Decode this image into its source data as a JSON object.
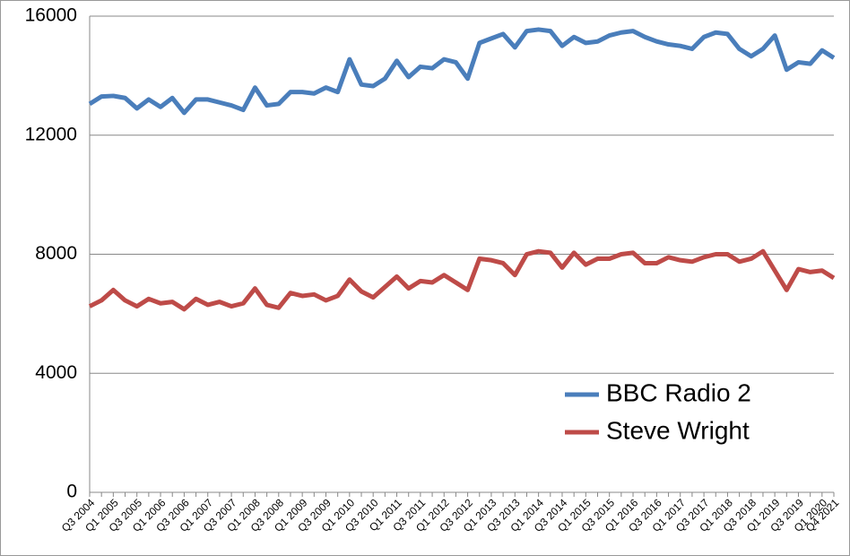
{
  "chart_data": {
    "type": "line",
    "categories": [
      "Q3 2004",
      null,
      "Q1 2005",
      null,
      "Q3 2005",
      null,
      "Q1 2006",
      null,
      "Q3 2006",
      null,
      "Q1 2007",
      null,
      "Q3 2007",
      null,
      "Q1 2008",
      null,
      "Q3 2008",
      null,
      "Q1 2009",
      null,
      "Q3 2009",
      null,
      "Q1 2010",
      null,
      "Q3 2010",
      null,
      "Q1 2011",
      null,
      "Q3 2011",
      null,
      "Q1 2012",
      null,
      "Q3 2012",
      null,
      "Q1 2013",
      null,
      "Q3 2013",
      null,
      "Q1 2014",
      null,
      "Q3 2014",
      null,
      "Q1 2015",
      null,
      "Q3 2015",
      null,
      "Q1 2016",
      null,
      "Q3 2016",
      null,
      "Q1 2017",
      null,
      "Q3 2017",
      null,
      "Q1 2018",
      null,
      "Q3 2018",
      null,
      "Q1 2019",
      null,
      "Q3 2019",
      null,
      "Q1 2020",
      "Q4 2021"
    ],
    "series": [
      {
        "name": "BBC Radio 2",
        "color": "#4a7ebb",
        "values": [
          13050,
          13300,
          13320,
          13250,
          12900,
          13200,
          12950,
          13250,
          12750,
          13200,
          13200,
          13100,
          13000,
          12850,
          13600,
          13000,
          13050,
          13450,
          13450,
          13400,
          13600,
          13450,
          14550,
          13700,
          13650,
          13900,
          14500,
          13950,
          14300,
          14250,
          14550,
          14450,
          13900,
          15100,
          15250,
          15400,
          14950,
          15500,
          15550,
          15500,
          15000,
          15300,
          15100,
          15150,
          15350,
          15450,
          15500,
          15300,
          15150,
          15050,
          15000,
          14900,
          15300,
          15450,
          15400,
          14900,
          14650,
          14900,
          15350,
          14200,
          14450,
          14400,
          14850,
          14600
        ]
      },
      {
        "name": "Steve Wright",
        "color": "#be4b48",
        "values": [
          6250,
          6450,
          6800,
          6450,
          6250,
          6500,
          6350,
          6400,
          6150,
          6500,
          6300,
          6400,
          6250,
          6350,
          6850,
          6300,
          6200,
          6700,
          6600,
          6650,
          6450,
          6600,
          7150,
          6750,
          6550,
          6900,
          7250,
          6850,
          7100,
          7050,
          7300,
          7050,
          6800,
          7850,
          7800,
          7700,
          7300,
          8000,
          8100,
          8050,
          7550,
          8050,
          7650,
          7850,
          7850,
          8000,
          8050,
          7700,
          7700,
          7900,
          7800,
          7750,
          7900,
          8000,
          8000,
          7750,
          7850,
          8100,
          7450,
          6800,
          7500,
          7400,
          7450,
          7200
        ]
      }
    ],
    "ylim": [
      0,
      16000
    ],
    "yticks": [
      0,
      4000,
      8000,
      12000,
      16000
    ],
    "grid": true,
    "legend": "right"
  }
}
